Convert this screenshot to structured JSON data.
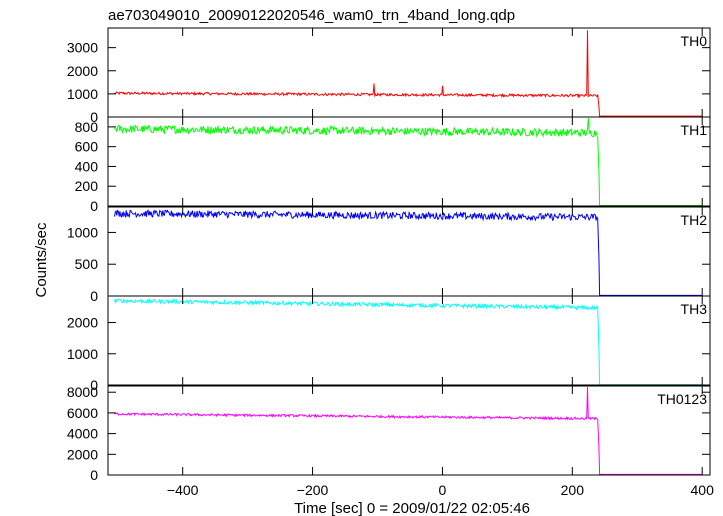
{
  "chart_data": {
    "type": "line",
    "title": "ae703049010_20090122020546_wam0_trn_4band_long.qdp",
    "xlabel": "Time [sec] 0 = 2009/01/22 02:05:46",
    "ylabel": "Counts/sec",
    "xlim": [
      -515,
      412
    ],
    "x_ticks": [
      -400,
      -200,
      0,
      200,
      400
    ],
    "x_tick_labels": [
      "−400",
      "−200",
      "0",
      "200",
      "400"
    ],
    "grid": false,
    "series": [
      {
        "name": "TH0",
        "color": "#ff0000",
        "ylim": [
          0,
          3850
        ],
        "y_ticks": [
          0,
          1000,
          2000,
          3000
        ],
        "baseline": 1030,
        "end_level": 920,
        "noise": 55,
        "after_level": 40,
        "spikes": [
          {
            "x": -105,
            "y": 1450
          },
          {
            "x": 0,
            "y": 1350
          },
          {
            "x": 223,
            "y": 3750
          }
        ]
      },
      {
        "name": "TH1",
        "color": "#00ff00",
        "ylim": [
          0,
          900
        ],
        "y_ticks": [
          0,
          200,
          400,
          600,
          800
        ],
        "baseline": 780,
        "end_level": 740,
        "noise": 40,
        "after_level": 5,
        "spikes": [
          {
            "x": 224,
            "y": 890
          }
        ]
      },
      {
        "name": "TH2",
        "color": "#0000ff",
        "ylim": [
          0,
          1400
        ],
        "y_ticks": [
          0,
          500,
          1000
        ],
        "baseline": 1300,
        "end_level": 1240,
        "noise": 55,
        "after_level": 10,
        "spikes": []
      },
      {
        "name": "TH3",
        "color": "#00ffff",
        "ylim": [
          0,
          2850
        ],
        "y_ticks": [
          0,
          1000,
          2000
        ],
        "baseline": 2700,
        "end_level": 2470,
        "noise": 60,
        "after_level": 10,
        "spikes": []
      },
      {
        "name": "TH0123",
        "color": "#ff00ff",
        "ylim": [
          0,
          8600
        ],
        "y_ticks": [
          0,
          2000,
          4000,
          6000,
          8000
        ],
        "baseline": 5900,
        "end_level": 5450,
        "noise": 110,
        "after_level": 60,
        "spikes": [
          {
            "x": 223,
            "y": 8500
          }
        ]
      }
    ],
    "x_start": -505,
    "x_drop": 240,
    "x_end": 400
  }
}
